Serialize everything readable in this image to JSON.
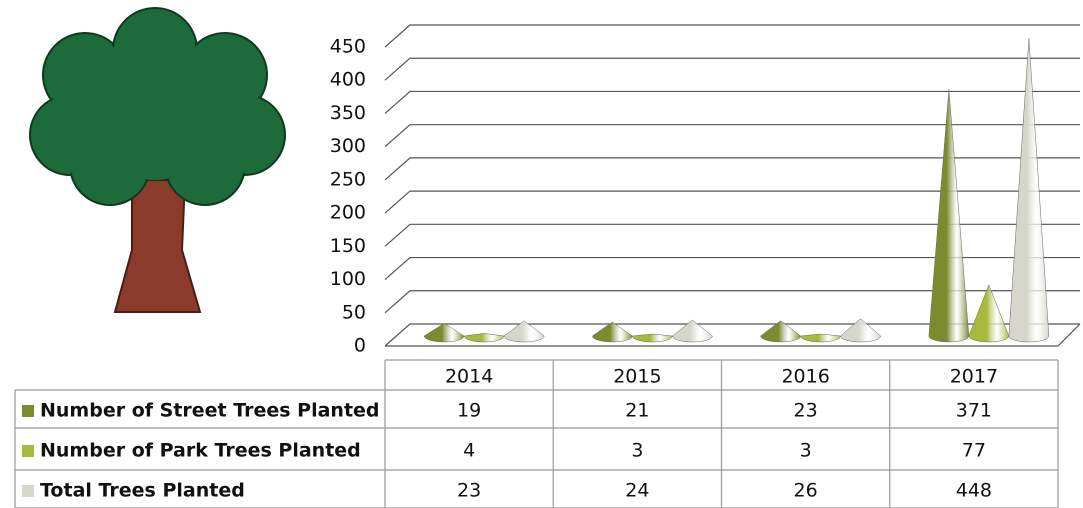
{
  "chart_data": {
    "type": "cone",
    "categories": [
      "2014",
      "2015",
      "2016",
      "2017"
    ],
    "series": [
      {
        "name": "Number of Street Trees Planted",
        "color": "#7d8b2f",
        "values": [
          19,
          21,
          23,
          371
        ]
      },
      {
        "name": "Number of Park Trees Planted",
        "color": "#a9b93c",
        "values": [
          4,
          3,
          3,
          77
        ]
      },
      {
        "name": "Total Trees Planted",
        "color": "#d6d6cc",
        "values": [
          23,
          24,
          26,
          448
        ]
      }
    ],
    "ylim": [
      0,
      450
    ],
    "yticks": [
      0,
      50,
      100,
      150,
      200,
      250,
      300,
      350,
      400,
      450
    ],
    "grid": true
  }
}
